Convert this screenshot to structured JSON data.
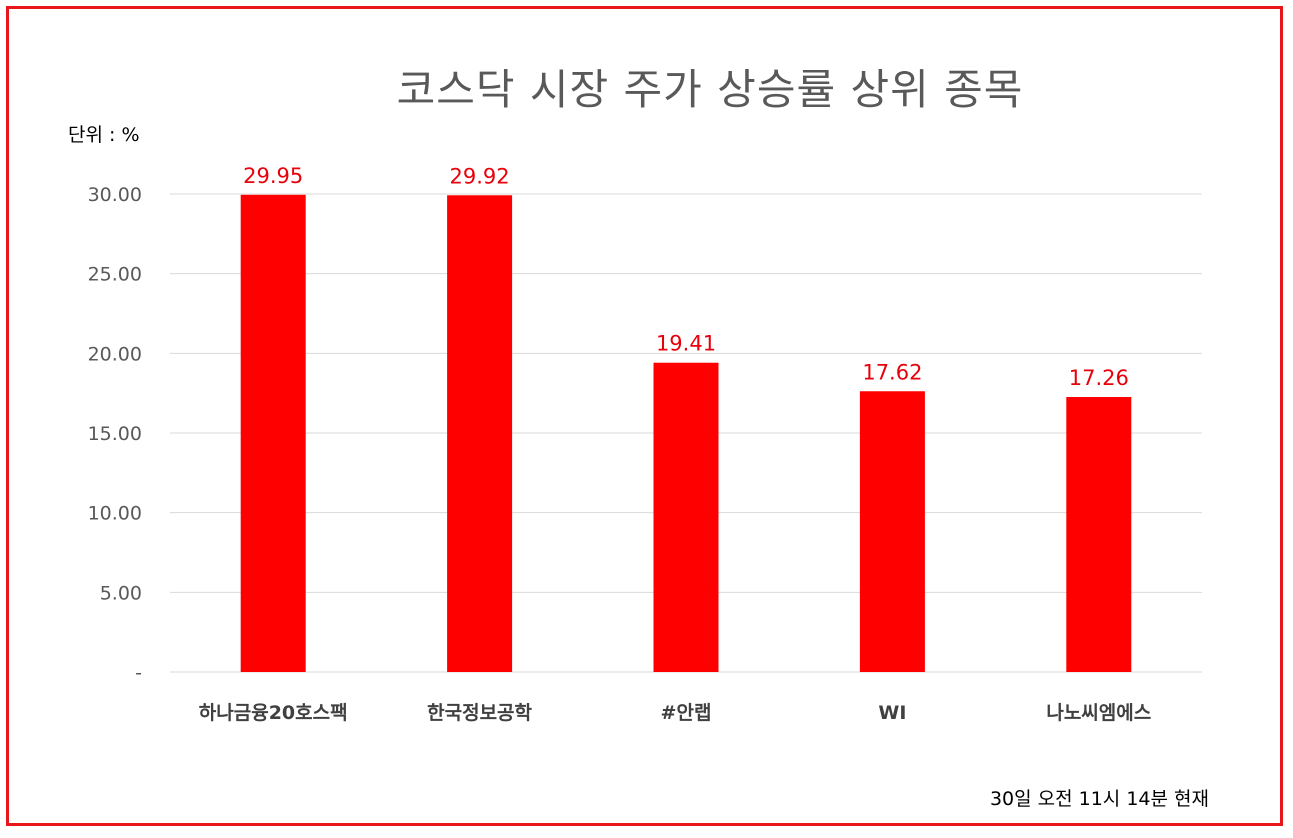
{
  "chart_data": {
    "type": "bar",
    "title": "코스닥 시장 주가 상승률 상위 종목",
    "unit_label": "단위 : %",
    "footnote": "30일  오전 11시 14분 현재",
    "categories": [
      "하나금융20호스팩",
      "한국정보공학",
      "#안랩",
      "WI",
      "나노씨엠에스"
    ],
    "values": [
      29.95,
      29.92,
      19.41,
      17.62,
      17.26
    ],
    "data_labels": [
      "29.95",
      "29.92",
      "19.41",
      "17.62",
      "17.26"
    ],
    "yticks": [
      0,
      5,
      10,
      15,
      20,
      25,
      30
    ],
    "ytick_labels": [
      "-",
      "5.00",
      "10.00",
      "15.00",
      "20.00",
      "25.00",
      "30.00"
    ],
    "ylim": [
      0,
      30
    ],
    "grid": true,
    "legend": "none",
    "bar_color": "#ff0000",
    "label_color": "#e8000b"
  }
}
